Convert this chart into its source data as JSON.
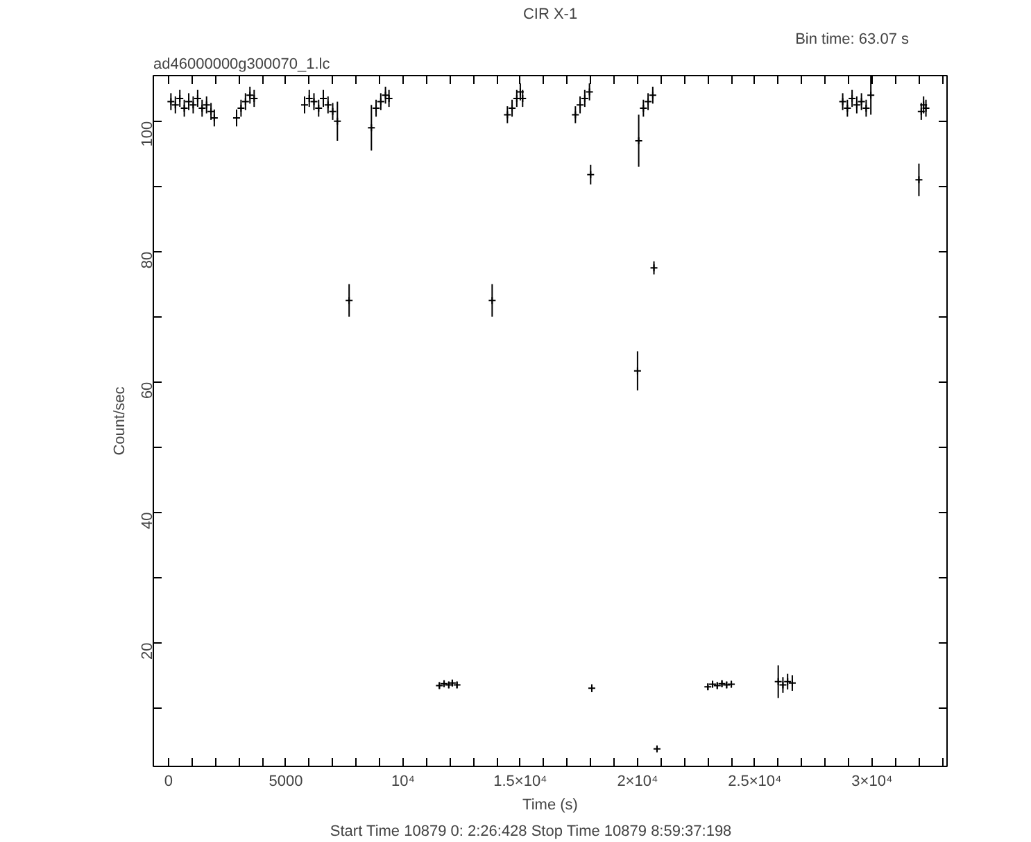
{
  "chart_data": {
    "type": "scatter",
    "title": "CIR X-1",
    "xlabel": "Time (s)",
    "ylabel": "Count/sec",
    "annotations": [
      "ad46000000g300070_1.lc",
      "Bin time:    63.07       s",
      "Start Time 10879   0: 2:26:428      Stop Time 10879   8:59:37:198"
    ],
    "marker": "cross",
    "grid": false,
    "xlim": [
      -650,
      33200
    ],
    "ylim": [
      1,
      107
    ],
    "xticks": [
      0,
      {
        "value": 1000,
        "label": null
      },
      {
        "value": 2000,
        "label": null
      },
      {
        "value": 3000,
        "label": null
      },
      {
        "value": 4000,
        "label": null
      },
      5000,
      {
        "value": 6000,
        "label": null
      },
      {
        "value": 7000,
        "label": null
      },
      {
        "value": 8000,
        "label": null
      },
      {
        "value": 9000,
        "label": null
      },
      {
        "value": 10000,
        "label": "10⁴"
      },
      {
        "value": 11000,
        "label": null
      },
      {
        "value": 12000,
        "label": null
      },
      {
        "value": 13000,
        "label": null
      },
      {
        "value": 14000,
        "label": null
      },
      {
        "value": 15000,
        "label": "1.5×10⁴"
      },
      {
        "value": 16000,
        "label": null
      },
      {
        "value": 17000,
        "label": null
      },
      {
        "value": 18000,
        "label": null
      },
      {
        "value": 19000,
        "label": null
      },
      {
        "value": 20000,
        "label": "2×10⁴"
      },
      {
        "value": 21000,
        "label": null
      },
      {
        "value": 22000,
        "label": null
      },
      {
        "value": 23000,
        "label": null
      },
      {
        "value": 24000,
        "label": null
      },
      {
        "value": 25000,
        "label": "2.5×10⁴"
      },
      {
        "value": 26000,
        "label": null
      },
      {
        "value": 27000,
        "label": null
      },
      {
        "value": 28000,
        "label": null
      },
      {
        "value": 29000,
        "label": null
      },
      {
        "value": 30000,
        "label": "3×10⁴"
      },
      {
        "value": 31000,
        "label": null
      },
      {
        "value": 32000,
        "label": null
      },
      {
        "value": 33000,
        "label": null
      }
    ],
    "yticks": [
      {
        "value": 10,
        "label": null
      },
      20,
      {
        "value": 30,
        "label": null
      },
      40,
      {
        "value": 50,
        "label": null
      },
      60,
      {
        "value": 70,
        "label": null
      },
      80,
      {
        "value": 90,
        "label": null
      },
      100
    ],
    "series": [
      {
        "color": "#000000",
        "x": [
          100,
          290,
          480,
          670,
          860,
          1050,
          1240,
          1430,
          1620,
          1810,
          1950,
          2900,
          3090,
          3280,
          3470,
          3650,
          5800,
          6000,
          6200,
          6400,
          6600,
          6800,
          7000,
          7200,
          7700,
          8650,
          8850,
          9050,
          9250,
          9400,
          11550,
          11750,
          11950,
          12100,
          12300,
          13800,
          14450,
          14650,
          14850,
          15000,
          15100,
          17350,
          17550,
          17750,
          17950,
          18000,
          18050,
          20000,
          20050,
          20250,
          20450,
          20650,
          20700,
          20830,
          23000,
          23200,
          23400,
          23600,
          23800,
          24000,
          26000,
          26200,
          26400,
          26600,
          28750,
          28950,
          29150,
          29350,
          29550,
          29750,
          29950,
          32000,
          32100,
          32200,
          32300
        ],
        "values": [
          103,
          102.5,
          103.5,
          102,
          103,
          102.5,
          103.5,
          102,
          102.5,
          101.5,
          100.5,
          100.5,
          102,
          103,
          104,
          103.5,
          102.5,
          103.5,
          103,
          102,
          103.5,
          102.5,
          101.5,
          100,
          72.5,
          99,
          102,
          103,
          104,
          103.5,
          13.4,
          13.7,
          13.5,
          13.8,
          13.5,
          72.5,
          101,
          102,
          103.5,
          104.5,
          103.5,
          101,
          102.5,
          103.5,
          104.5,
          91.8,
          13,
          61.7,
          97,
          102,
          103,
          104,
          77.5,
          3.7,
          13.2,
          13.6,
          13.4,
          13.7,
          13.5,
          13.6,
          14,
          13.5,
          14,
          13.8,
          103,
          102,
          103.5,
          102.5,
          103,
          102,
          104,
          91,
          101.5,
          102.5,
          102
        ],
        "errors": [
          1.3,
          1.3,
          1.3,
          1.3,
          1.3,
          1.3,
          1.3,
          1.3,
          1.3,
          1.3,
          1.3,
          1.3,
          1.3,
          1.3,
          1.3,
          1.3,
          1.3,
          1.3,
          1.3,
          1.3,
          1.3,
          1.3,
          1.3,
          3,
          2.5,
          3.5,
          1.3,
          1.3,
          1.3,
          1.3,
          0.5,
          0.5,
          0.5,
          0.5,
          0.5,
          2.5,
          1.3,
          1.3,
          1.3,
          1.3,
          1.3,
          1.3,
          1.3,
          1.3,
          1.3,
          1.5,
          0.6,
          3,
          4,
          1.3,
          1.3,
          1.3,
          1,
          0.4,
          0.5,
          0.5,
          0.5,
          0.5,
          0.5,
          0.5,
          2.5,
          1.2,
          1.2,
          1.2,
          1.3,
          1.3,
          1.3,
          1.3,
          1.3,
          1.3,
          3,
          2.5,
          1.3,
          1.3,
          1.3
        ]
      }
    ]
  }
}
